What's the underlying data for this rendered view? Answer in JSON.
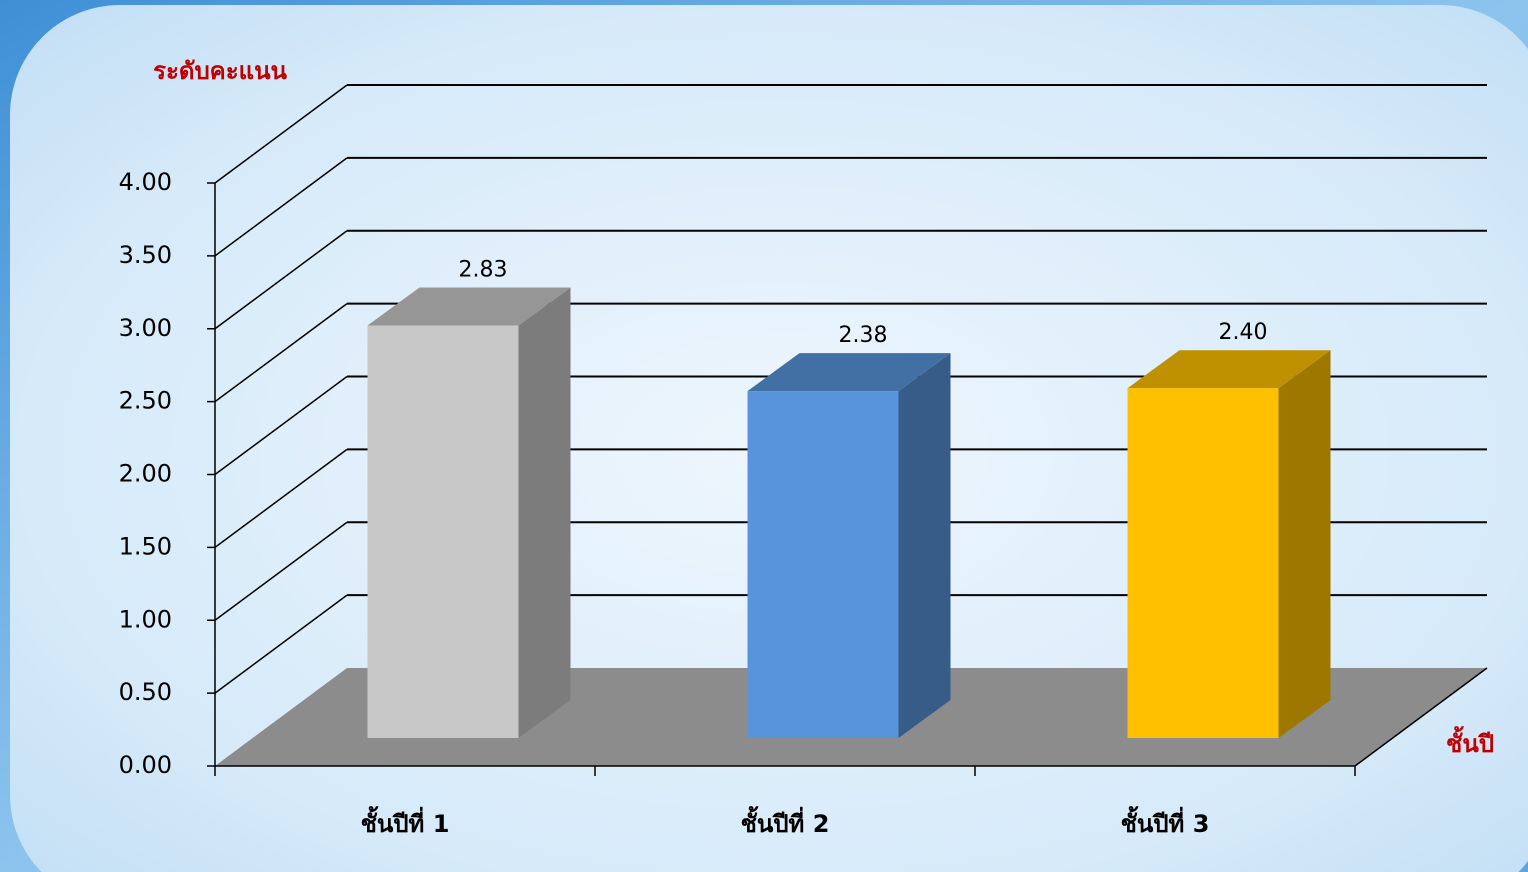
{
  "chart_data": {
    "type": "bar3d",
    "y_axis_label": "ระดับคะแนน",
    "x_axis_label": "ชั้นปี",
    "categories": [
      "ชั้นปีที่ 1",
      "ชั้นปีที่ 2",
      "ชั้นปีที่ 3"
    ],
    "values": [
      2.83,
      2.38,
      2.4
    ],
    "value_labels": [
      "2.83",
      "2.38",
      "2.40"
    ],
    "colors": [
      "#c8c8c8",
      "#5894db",
      "#ffc000"
    ],
    "ylim": [
      0,
      4
    ],
    "yticks": [
      {
        "value": 0,
        "label": "0.00"
      },
      {
        "value": 0.5,
        "label": "0.50"
      },
      {
        "value": 1,
        "label": "1.00"
      },
      {
        "value": 1.5,
        "label": "1.50"
      },
      {
        "value": 2,
        "label": "2.00"
      },
      {
        "value": 2.5,
        "label": "2.50"
      },
      {
        "value": 3,
        "label": "3.00"
      },
      {
        "value": 3.5,
        "label": "3.50"
      },
      {
        "value": 4,
        "label": "4.00"
      }
    ],
    "grid": true
  }
}
